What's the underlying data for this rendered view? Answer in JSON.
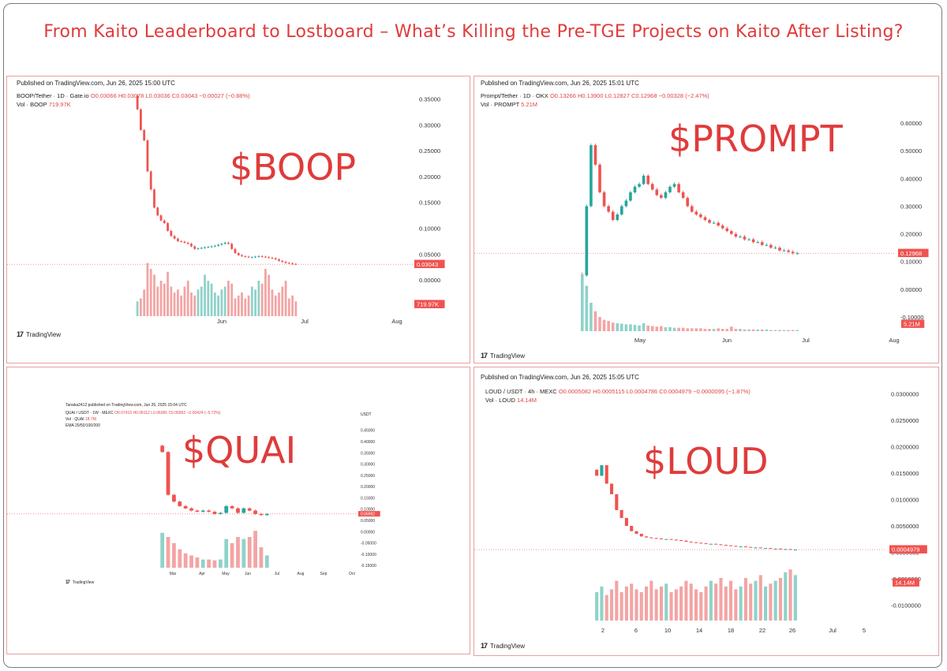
{
  "header": {
    "title": "From Kaito Leaderboard to Lostboard – What’s Killing the Pre-TGE Projects on Kaito After Listing?"
  },
  "colors": {
    "up": "#26a69a",
    "down": "#ef5350",
    "vol_up": "#8fd2c9",
    "vol_down": "#f3a4a4",
    "accent": "#e03b3b"
  },
  "brand": {
    "logo_icon": "tradingview-logo-icon",
    "name": "TradingView"
  },
  "charts": [
    {
      "key": "boop",
      "published": "Published on TradingView.com, Jun 26, 2025 15:00 UTC",
      "symbol": "BOOP/Tether · 1D · Gate.io",
      "ohlc": "O0.03066 H0.03078 L0.03036 C0.03043 −0.00027 (−0.88%)",
      "vol_label": "Vol · BOOP",
      "vol_value": "719.97K",
      "label": "$BOOP",
      "price_tag": "0.03043",
      "vol_tag": "719.97K",
      "y_ticks": [
        "0.35000",
        "0.30000",
        "0.25000",
        "0.20000",
        "0.15000",
        "0.10000",
        "0.05000",
        "0.00000",
        "-0.05000"
      ],
      "x_ticks": [
        "Jun",
        "Jul",
        "Aug"
      ]
    },
    {
      "key": "prompt",
      "published": "Published on TradingView.com, Jun 26, 2025 15:01 UTC",
      "symbol": "Prompt/Tether · 1D · OKX",
      "ohlc": "O0.13266 H0.13900 L0.12827 C0.12968 −0.00328 (−2.47%)",
      "vol_label": "Vol · PROMPT",
      "vol_value": "5.21M",
      "label": "$PROMPT",
      "price_tag": "0.12968",
      "vol_tag": "5.21M",
      "y_ticks": [
        "0.60000",
        "0.50000",
        "0.40000",
        "0.30000",
        "0.20000",
        "0.10000",
        "0.00000",
        "-0.10000"
      ],
      "x_ticks": [
        "May",
        "Jun",
        "Jul",
        "Aug"
      ]
    },
    {
      "key": "quai",
      "published": "Tanaka2412 published on TradingView.com, Jun 26, 2025 15:04 UTC",
      "symbol": "QUAI / USDT · 1W · MEXC",
      "ohlc": "O0.07415 H0.08112 L0.06065 C0.06992 −0.00424 (−5.72%)",
      "vol_label": "Vol · QUAI",
      "vol_value": "18.7M",
      "ema": "EMA 20/50/100/200",
      "currency": "USDT",
      "label": "$QUAI",
      "price_tag": "0.06992",
      "y_ticks": [
        "0.45000",
        "0.40000",
        "0.35000",
        "0.30000",
        "0.25000",
        "0.20000",
        "0.15000",
        "0.10000",
        "0.05000",
        "0.00000",
        "-0.05000",
        "-0.10000",
        "-0.15000"
      ],
      "x_ticks": [
        "Mar",
        "Apr",
        "May",
        "Jun",
        "Jul",
        "Aug",
        "Sep",
        "Oct"
      ]
    },
    {
      "key": "loud",
      "published": "Published on TradingView.com, Jun 26, 2025 15:05 UTC",
      "symbol": "LOUD / USDT · 4h · MEXC",
      "ohlc": "O0.0005082 H0.0005115 L0.0004786 C0.0004979 −0.0000095 (−1.87%)",
      "vol_label": "Vol · LOUD",
      "vol_value": "14.14M",
      "label": "$LOUD",
      "price_tag": "0.0004979",
      "vol_tag": "14.14M",
      "y_ticks": [
        "0.0300000",
        "0.0250000",
        "0.0200000",
        "0.0150000",
        "0.0100000",
        "0.0050000",
        "0.0000000",
        "-0.0050000",
        "-0.0100000"
      ],
      "x_ticks": [
        "2",
        "6",
        "10",
        "14",
        "18",
        "22",
        "26",
        "Jul",
        "5"
      ]
    }
  ],
  "chart_data": [
    {
      "type": "candlestick",
      "name": "BOOP/Tether 1D",
      "ylim": [
        -0.07,
        0.36
      ],
      "close": [
        0.33,
        0.29,
        0.27,
        0.21,
        0.175,
        0.14,
        0.125,
        0.115,
        0.11,
        0.095,
        0.085,
        0.08,
        0.075,
        0.074,
        0.072,
        0.07,
        0.065,
        0.06,
        0.061,
        0.062,
        0.063,
        0.064,
        0.065,
        0.066,
        0.068,
        0.07,
        0.072,
        0.07,
        0.06,
        0.052,
        0.048,
        0.046,
        0.045,
        0.044,
        0.044,
        0.045,
        0.046,
        0.045,
        0.044,
        0.043,
        0.042,
        0.04,
        0.037,
        0.035,
        0.033,
        0.032,
        0.031,
        0.0304
      ],
      "volume_rel": [
        0.25,
        0.3,
        0.45,
        0.9,
        0.8,
        0.7,
        0.5,
        0.6,
        0.55,
        0.75,
        0.5,
        0.4,
        0.45,
        0.35,
        0.5,
        0.6,
        0.4,
        0.35,
        0.45,
        0.5,
        0.7,
        0.6,
        0.55,
        0.4,
        0.35,
        0.45,
        0.5,
        0.6,
        0.55,
        0.3,
        0.35,
        0.4,
        0.3,
        0.35,
        0.5,
        0.45,
        0.6,
        0.55,
        0.8,
        0.7,
        0.45,
        0.35,
        0.4,
        0.5,
        0.6,
        0.3,
        0.35,
        0.25
      ]
    },
    {
      "type": "candlestick",
      "name": "Prompt/Tether 1D",
      "ylim": [
        -0.12,
        0.66
      ],
      "close": [
        0.05,
        0.3,
        0.52,
        0.45,
        0.35,
        0.3,
        0.28,
        0.25,
        0.27,
        0.3,
        0.32,
        0.35,
        0.37,
        0.38,
        0.41,
        0.38,
        0.36,
        0.34,
        0.33,
        0.35,
        0.37,
        0.38,
        0.35,
        0.33,
        0.3,
        0.28,
        0.27,
        0.26,
        0.25,
        0.24,
        0.24,
        0.23,
        0.22,
        0.21,
        0.2,
        0.19,
        0.19,
        0.18,
        0.18,
        0.17,
        0.17,
        0.16,
        0.16,
        0.15,
        0.15,
        0.14,
        0.14,
        0.135,
        0.13,
        0.13
      ],
      "volume_rel": [
        1.0,
        0.8,
        0.5,
        0.35,
        0.25,
        0.2,
        0.18,
        0.15,
        0.14,
        0.13,
        0.12,
        0.12,
        0.11,
        0.1,
        0.14,
        0.1,
        0.09,
        0.08,
        0.09,
        0.07,
        0.07,
        0.06,
        0.06,
        0.06,
        0.05,
        0.05,
        0.05,
        0.05,
        0.04,
        0.04,
        0.04,
        0.05,
        0.04,
        0.04,
        0.08,
        0.04,
        0.04,
        0.03,
        0.03,
        0.03,
        0.03,
        0.03,
        0.03,
        0.02,
        0.02,
        0.02,
        0.02,
        0.02,
        0.02,
        0.02
      ]
    },
    {
      "type": "candlestick",
      "name": "QUAI / USDT 1W",
      "ylim": [
        -0.16,
        0.47
      ],
      "close": [
        0.35,
        0.16,
        0.13,
        0.11,
        0.1,
        0.09,
        0.085,
        0.09,
        0.085,
        0.075,
        0.08,
        0.11,
        0.1,
        0.08,
        0.1,
        0.09,
        0.075,
        0.07,
        0.075
      ],
      "volume_rel": [
        0.85,
        0.75,
        0.6,
        0.45,
        0.35,
        0.3,
        0.25,
        0.2,
        0.2,
        0.18,
        0.2,
        0.7,
        0.6,
        0.75,
        0.7,
        0.75,
        0.9,
        0.5,
        0.3
      ]
    },
    {
      "type": "candlestick",
      "name": "LOUD / USDT 4h",
      "ylim": [
        -0.011,
        0.031
      ],
      "close": [
        0.0145,
        0.0165,
        0.013,
        0.011,
        0.008,
        0.0065,
        0.005,
        0.004,
        0.0035,
        0.003,
        0.0028,
        0.0027,
        0.0026,
        0.0025,
        0.0025,
        0.0024,
        0.0023,
        0.0022,
        0.002,
        0.0019,
        0.0018,
        0.0017,
        0.0016,
        0.0016,
        0.0015,
        0.0014,
        0.0013,
        0.0012,
        0.0011,
        0.0011,
        0.001,
        0.0009,
        0.0009,
        0.0008,
        0.0008,
        0.0007,
        0.0007,
        0.0006,
        0.0006,
        0.0005,
        0.0005
      ],
      "volume_rel": [
        0.5,
        0.6,
        0.45,
        0.55,
        0.7,
        0.5,
        0.6,
        0.65,
        0.55,
        0.5,
        0.6,
        0.7,
        0.55,
        0.6,
        0.65,
        0.5,
        0.55,
        0.6,
        0.7,
        0.65,
        0.55,
        0.5,
        0.6,
        0.7,
        0.65,
        0.75,
        0.6,
        0.7,
        0.55,
        0.6,
        0.75,
        0.65,
        0.7,
        0.8,
        0.6,
        0.65,
        0.7,
        0.75,
        0.85,
        0.9,
        0.8
      ]
    }
  ]
}
